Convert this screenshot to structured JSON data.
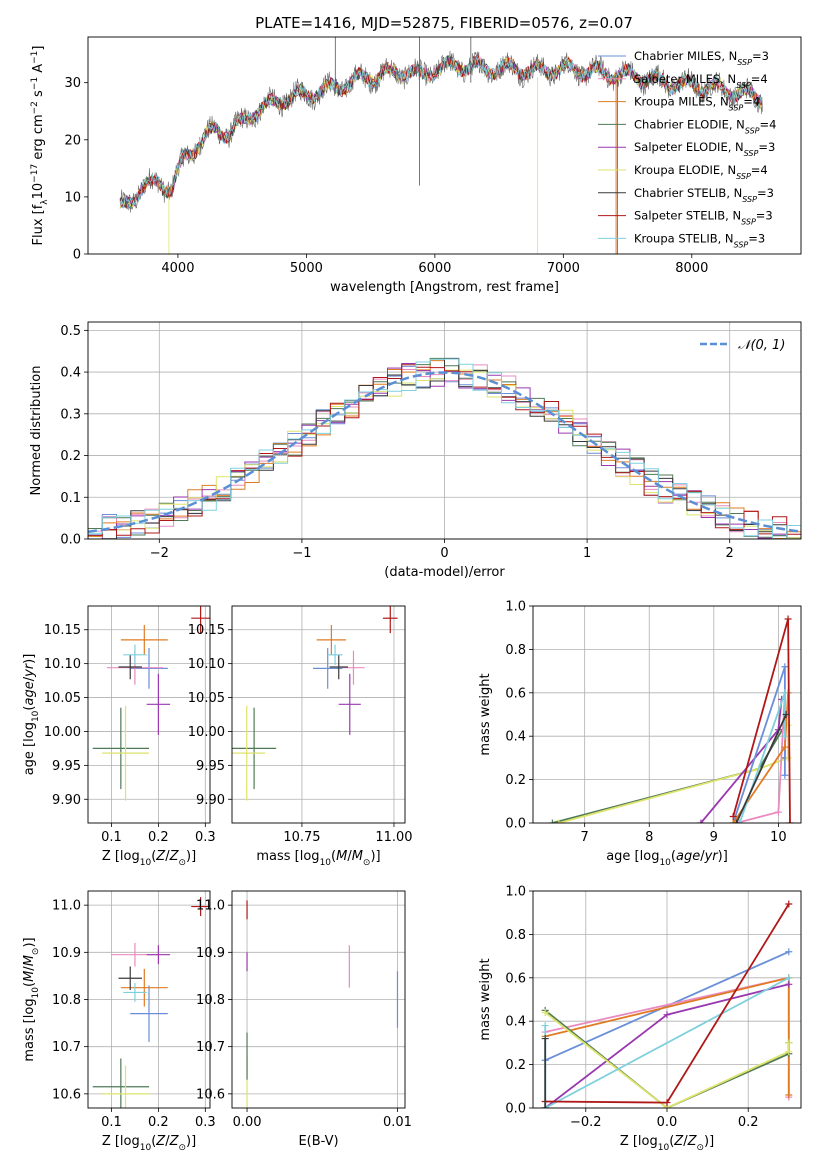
{
  "colors": {
    "chabrier_miles": "#6a8fd8",
    "salpeter_miles": "#e98bc0",
    "kroupa_miles": "#e07b22",
    "chabrier_elodie": "#4f7a55",
    "salpeter_elodie": "#9a38b0",
    "kroupa_elodie": "#dde36b",
    "chabrier_stelib": "#3a3a3a",
    "salpeter_stelib": "#b01818",
    "kroupa_stelib": "#7ed0dd",
    "gauss": "#5b8fd4"
  },
  "series_names": [
    {
      "key": "chabrier_miles",
      "text": "Chabrier MILES, N",
      "sub": "SSP",
      "tail": "=3"
    },
    {
      "key": "salpeter_miles",
      "text": "Salpeter MILES, N",
      "sub": "SSP",
      "tail": "=4"
    },
    {
      "key": "kroupa_miles",
      "text": "Kroupa MILES, N",
      "sub": "SSP",
      "tail": "=4"
    },
    {
      "key": "chabrier_elodie",
      "text": "Chabrier ELODIE, N",
      "sub": "SSP",
      "tail": "=4"
    },
    {
      "key": "salpeter_elodie",
      "text": "Salpeter ELODIE, N",
      "sub": "SSP",
      "tail": "=3"
    },
    {
      "key": "kroupa_elodie",
      "text": "Kroupa ELODIE, N",
      "sub": "SSP",
      "tail": "=4"
    },
    {
      "key": "chabrier_stelib",
      "text": "Chabrier STELIB, N",
      "sub": "SSP",
      "tail": "=3"
    },
    {
      "key": "salpeter_stelib",
      "text": "Salpeter STELIB, N",
      "sub": "SSP",
      "tail": "=3"
    },
    {
      "key": "kroupa_stelib",
      "text": "Kroupa STELIB, N",
      "sub": "SSP",
      "tail": "=3"
    }
  ],
  "chart_data": [
    {
      "type": "line",
      "title": "PLATE=1416, MJD=52875, FIBERID=0576, z=0.07",
      "xlabel": "wavelength [Angstrom, rest frame]",
      "ylabel_parts": [
        "Flux [f",
        "λ",
        "10",
        "−17",
        " erg cm",
        "−2",
        " s",
        "−1",
        " A",
        "−1",
        "]"
      ],
      "xlim": [
        3300,
        8850
      ],
      "ylim": [
        0,
        38
      ],
      "xticks": [
        4000,
        5000,
        6000,
        7000,
        8000
      ],
      "yticks": [
        0,
        10,
        20,
        30
      ],
      "grid": false,
      "legend": "right",
      "spectrum_anchor_x": [
        3550,
        3700,
        3850,
        3950,
        4050,
        4200,
        4300,
        4400,
        4600,
        4800,
        5000,
        5200,
        5400,
        5600,
        5800,
        5900,
        6000,
        6200,
        6400,
        6600,
        6800,
        7000,
        7200,
        7400,
        7600,
        7800,
        8000,
        8200,
        8400,
        8550
      ],
      "spectrum_anchor_y": [
        8,
        11,
        13,
        11,
        17,
        20,
        22,
        21,
        25,
        27,
        28,
        29,
        30.5,
        31.5,
        32,
        31,
        32.5,
        33,
        32.5,
        32.5,
        32,
        32.5,
        32,
        31.5,
        31,
        30,
        29.5,
        29,
        28,
        27.5
      ]
    },
    {
      "type": "histogram",
      "xlabel": "(data-model)/error",
      "ylabel": "Normed distribution",
      "xlim": [
        -2.5,
        2.5
      ],
      "ylim": [
        0,
        0.52
      ],
      "xticks": [
        -2,
        -1,
        0,
        1,
        2
      ],
      "yticks": [
        0.0,
        0.1,
        0.2,
        0.3,
        0.4,
        0.5
      ],
      "bin_width": 0.1,
      "grid": true,
      "legend": "top-right",
      "gauss_label": "𝒩(0, 1)"
    },
    {
      "type": "errorbar",
      "xlabel": "Z [log10(Z/Z⊙)]",
      "ylabel": "age  [log10(age/yr)]",
      "xlim": [
        0.05,
        0.31
      ],
      "ylim": [
        9.865,
        10.185
      ],
      "xticks": [
        0.1,
        0.2,
        0.3
      ],
      "yticks": [
        9.9,
        9.95,
        10.0,
        10.05,
        10.1,
        10.15
      ],
      "grid": true,
      "points": [
        {
          "s": "chabrier_miles",
          "x": 0.18,
          "y": 10.093,
          "xerr": 0.04,
          "yerr": 0.03
        },
        {
          "s": "salpeter_miles",
          "x": 0.15,
          "y": 10.094,
          "xerr": 0.06,
          "yerr": 0.025
        },
        {
          "s": "kroupa_miles",
          "x": 0.17,
          "y": 10.135,
          "xerr": 0.05,
          "yerr": 0.022
        },
        {
          "s": "chabrier_elodie",
          "x": 0.12,
          "y": 9.975,
          "xerr": 0.06,
          "yerr": 0.06
        },
        {
          "s": "salpeter_elodie",
          "x": 0.2,
          "y": 10.04,
          "xerr": 0.025,
          "yerr": 0.045
        },
        {
          "s": "kroupa_elodie",
          "x": 0.13,
          "y": 9.968,
          "xerr": 0.05,
          "yerr": 0.07
        },
        {
          "s": "chabrier_stelib",
          "x": 0.14,
          "y": 10.095,
          "xerr": 0.025,
          "yerr": 0.018
        },
        {
          "s": "salpeter_stelib",
          "x": 0.29,
          "y": 10.167,
          "xerr": 0.02,
          "yerr": 0.022
        },
        {
          "s": "kroupa_stelib",
          "x": 0.15,
          "y": 10.113,
          "xerr": 0.025,
          "yerr": 0.015
        }
      ]
    },
    {
      "type": "errorbar",
      "xlabel": "mass [log10(M/M⊙)]",
      "ylabel": "",
      "xlim": [
        10.56,
        11.03
      ],
      "ylim": [
        9.865,
        10.185
      ],
      "xticks": [
        10.75,
        11.0
      ],
      "yticks": [
        9.9,
        9.95,
        10.0,
        10.05,
        10.1,
        10.15
      ],
      "grid": true,
      "points": [
        {
          "s": "chabrier_miles",
          "x": 10.82,
          "y": 10.093,
          "xerr": 0.04,
          "yerr": 0.03
        },
        {
          "s": "salpeter_miles",
          "x": 10.89,
          "y": 10.094,
          "xerr": 0.03,
          "yerr": 0.025
        },
        {
          "s": "kroupa_miles",
          "x": 10.83,
          "y": 10.135,
          "xerr": 0.04,
          "yerr": 0.022
        },
        {
          "s": "chabrier_elodie",
          "x": 10.62,
          "y": 9.975,
          "xerr": 0.06,
          "yerr": 0.06
        },
        {
          "s": "salpeter_elodie",
          "x": 10.88,
          "y": 10.04,
          "xerr": 0.03,
          "yerr": 0.045
        },
        {
          "s": "kroupa_elodie",
          "x": 10.6,
          "y": 9.968,
          "xerr": 0.05,
          "yerr": 0.07
        },
        {
          "s": "chabrier_stelib",
          "x": 10.85,
          "y": 10.095,
          "xerr": 0.025,
          "yerr": 0.018
        },
        {
          "s": "salpeter_stelib",
          "x": 10.99,
          "y": 10.167,
          "xerr": 0.02,
          "yerr": 0.022
        },
        {
          "s": "kroupa_stelib",
          "x": 10.84,
          "y": 10.113,
          "xerr": 0.02,
          "yerr": 0.015
        }
      ]
    },
    {
      "type": "line",
      "xlabel": "age  [log10(age/yr)]",
      "ylabel": "mass weight",
      "xlim": [
        6.2,
        10.35
      ],
      "ylim": [
        0,
        1
      ],
      "xticks": [
        7,
        8,
        9,
        10
      ],
      "yticks": [
        0.0,
        0.2,
        0.4,
        0.6,
        0.8,
        1.0
      ],
      "grid": true,
      "series": [
        {
          "s": "chabrier_elodie",
          "x": [
            6.5,
            9.7,
            10.1,
            10.1
          ],
          "y": [
            0.0,
            0.25,
            0.45,
            0.3
          ]
        },
        {
          "s": "kroupa_elodie",
          "x": [
            6.6,
            9.7,
            10.15,
            10.15
          ],
          "y": [
            0.0,
            0.25,
            0.3,
            0.45
          ]
        },
        {
          "s": "salpeter_elodie",
          "x": [
            8.8,
            10.0,
            10.05
          ],
          "y": [
            0.0,
            0.43,
            0.57
          ]
        },
        {
          "s": "chabrier_miles",
          "x": [
            9.3,
            10.1,
            10.1
          ],
          "y": [
            0.0,
            0.72,
            0.22
          ]
        },
        {
          "s": "salpeter_miles",
          "x": [
            9.35,
            10.0,
            10.1,
            10.1
          ],
          "y": [
            0.0,
            0.05,
            0.6,
            0.35
          ]
        },
        {
          "s": "kroupa_miles",
          "x": [
            9.3,
            10.1,
            10.15
          ],
          "y": [
            0.0,
            0.35,
            0.6
          ]
        },
        {
          "s": "kroupa_stelib",
          "x": [
            9.4,
            10.1,
            10.1
          ],
          "y": [
            0.0,
            0.6,
            0.4
          ]
        },
        {
          "s": "salpeter_stelib",
          "x": [
            9.3,
            10.15,
            10.18
          ],
          "y": [
            0.03,
            0.94,
            0.0
          ]
        },
        {
          "s": "chabrier_stelib",
          "x": [
            9.35,
            10.12
          ],
          "y": [
            0.0,
            0.5
          ]
        }
      ]
    },
    {
      "type": "errorbar",
      "xlabel": "Z [log10(Z/Z⊙)]",
      "ylabel": "mass [log10(M/M⊙)]",
      "xlim": [
        0.05,
        0.31
      ],
      "ylim": [
        10.57,
        11.03
      ],
      "xticks": [
        0.1,
        0.2,
        0.3
      ],
      "yticks": [
        10.6,
        10.7,
        10.8,
        10.9,
        11.0
      ],
      "grid": true,
      "points": [
        {
          "s": "chabrier_miles",
          "x": 0.18,
          "y": 10.77,
          "xerr": 0.04,
          "yerr": 0.06
        },
        {
          "s": "salpeter_miles",
          "x": 0.15,
          "y": 10.895,
          "xerr": 0.05,
          "yerr": 0.025
        },
        {
          "s": "kroupa_miles",
          "x": 0.17,
          "y": 10.825,
          "xerr": 0.05,
          "yerr": 0.04
        },
        {
          "s": "chabrier_elodie",
          "x": 0.12,
          "y": 10.615,
          "xerr": 0.06,
          "yerr": 0.06
        },
        {
          "s": "salpeter_elodie",
          "x": 0.2,
          "y": 10.895,
          "xerr": 0.025,
          "yerr": 0.02
        },
        {
          "s": "kroupa_elodie",
          "x": 0.13,
          "y": 10.6,
          "xerr": 0.05,
          "yerr": 0.06
        },
        {
          "s": "chabrier_stelib",
          "x": 0.14,
          "y": 10.845,
          "xerr": 0.025,
          "yerr": 0.025
        },
        {
          "s": "salpeter_stelib",
          "x": 0.29,
          "y": 10.997,
          "xerr": 0.02,
          "yerr": 0.02
        },
        {
          "s": "kroupa_stelib",
          "x": 0.15,
          "y": 10.815,
          "xerr": 0.025,
          "yerr": 0.02
        }
      ]
    },
    {
      "type": "errorbar",
      "xlabel": "E(B-V)",
      "ylabel": "",
      "xlim": [
        -0.001,
        0.0105
      ],
      "ylim": [
        10.57,
        11.03
      ],
      "xticks": [
        0.0,
        0.01
      ],
      "xticklabels": [
        "0.00",
        "0.01"
      ],
      "yticks": [
        10.6,
        10.7,
        10.8,
        10.9,
        11.0
      ],
      "grid": true,
      "points": [
        {
          "s": "salpeter_stelib",
          "x": 0.0,
          "y": 10.99,
          "xerr": 0.0,
          "yerr": 0.02
        },
        {
          "s": "kroupa_elodie",
          "x": 0.0,
          "y": 10.62,
          "xerr": 0.0,
          "yerr": 0.06
        },
        {
          "s": "chabrier_elodie",
          "x": 0.0,
          "y": 10.68,
          "xerr": 0.0,
          "yerr": 0.05
        },
        {
          "s": "salpeter_elodie",
          "x": 0.0,
          "y": 10.88,
          "xerr": 0.0,
          "yerr": 0.02
        },
        {
          "s": "salpeter_miles",
          "x": 0.0068,
          "y": 10.87,
          "xerr": 0.0,
          "yerr": 0.045
        },
        {
          "s": "chabrier_miles",
          "x": 0.01,
          "y": 10.8,
          "xerr": 0.0,
          "yerr": 0.06
        }
      ]
    },
    {
      "type": "line",
      "xlabel": "Z [log10(Z/Z⊙)]",
      "ylabel": "mass weight",
      "xlim": [
        -0.33,
        0.33
      ],
      "ylim": [
        0,
        1
      ],
      "xticks": [
        -0.2,
        0.0,
        0.2
      ],
      "yticks": [
        0.0,
        0.2,
        0.4,
        0.6,
        0.8,
        1.0
      ],
      "grid": true,
      "series": [
        {
          "s": "chabrier_miles",
          "x": [
            -0.3,
            0.3
          ],
          "y": [
            0.22,
            0.72
          ]
        },
        {
          "s": "salpeter_miles",
          "x": [
            -0.3,
            0.3,
            0.3
          ],
          "y": [
            0.35,
            0.6,
            0.05
          ]
        },
        {
          "s": "kroupa_miles",
          "x": [
            -0.3,
            0.3,
            0.3
          ],
          "y": [
            0.33,
            0.6,
            0.06
          ]
        },
        {
          "s": "chabrier_elodie",
          "x": [
            -0.3,
            0.0,
            0.3,
            0.3
          ],
          "y": [
            0.45,
            0.0,
            0.25,
            0.3
          ]
        },
        {
          "s": "salpeter_elodie",
          "x": [
            -0.3,
            0.0,
            0.3
          ],
          "y": [
            0.0,
            0.43,
            0.57
          ]
        },
        {
          "s": "kroupa_elodie",
          "x": [
            -0.3,
            0.0,
            0.3,
            0.3
          ],
          "y": [
            0.44,
            0.0,
            0.26,
            0.3
          ]
        },
        {
          "s": "kroupa_stelib",
          "x": [
            -0.3,
            -0.3,
            0.3
          ],
          "y": [
            0.38,
            0.0,
            0.6
          ]
        },
        {
          "s": "salpeter_stelib",
          "x": [
            -0.3,
            0.0,
            0.3
          ],
          "y": [
            0.03,
            0.025,
            0.94
          ]
        },
        {
          "s": "chabrier_stelib",
          "x": [
            -0.3,
            -0.3
          ],
          "y": [
            0.0,
            0.32
          ]
        }
      ]
    }
  ]
}
